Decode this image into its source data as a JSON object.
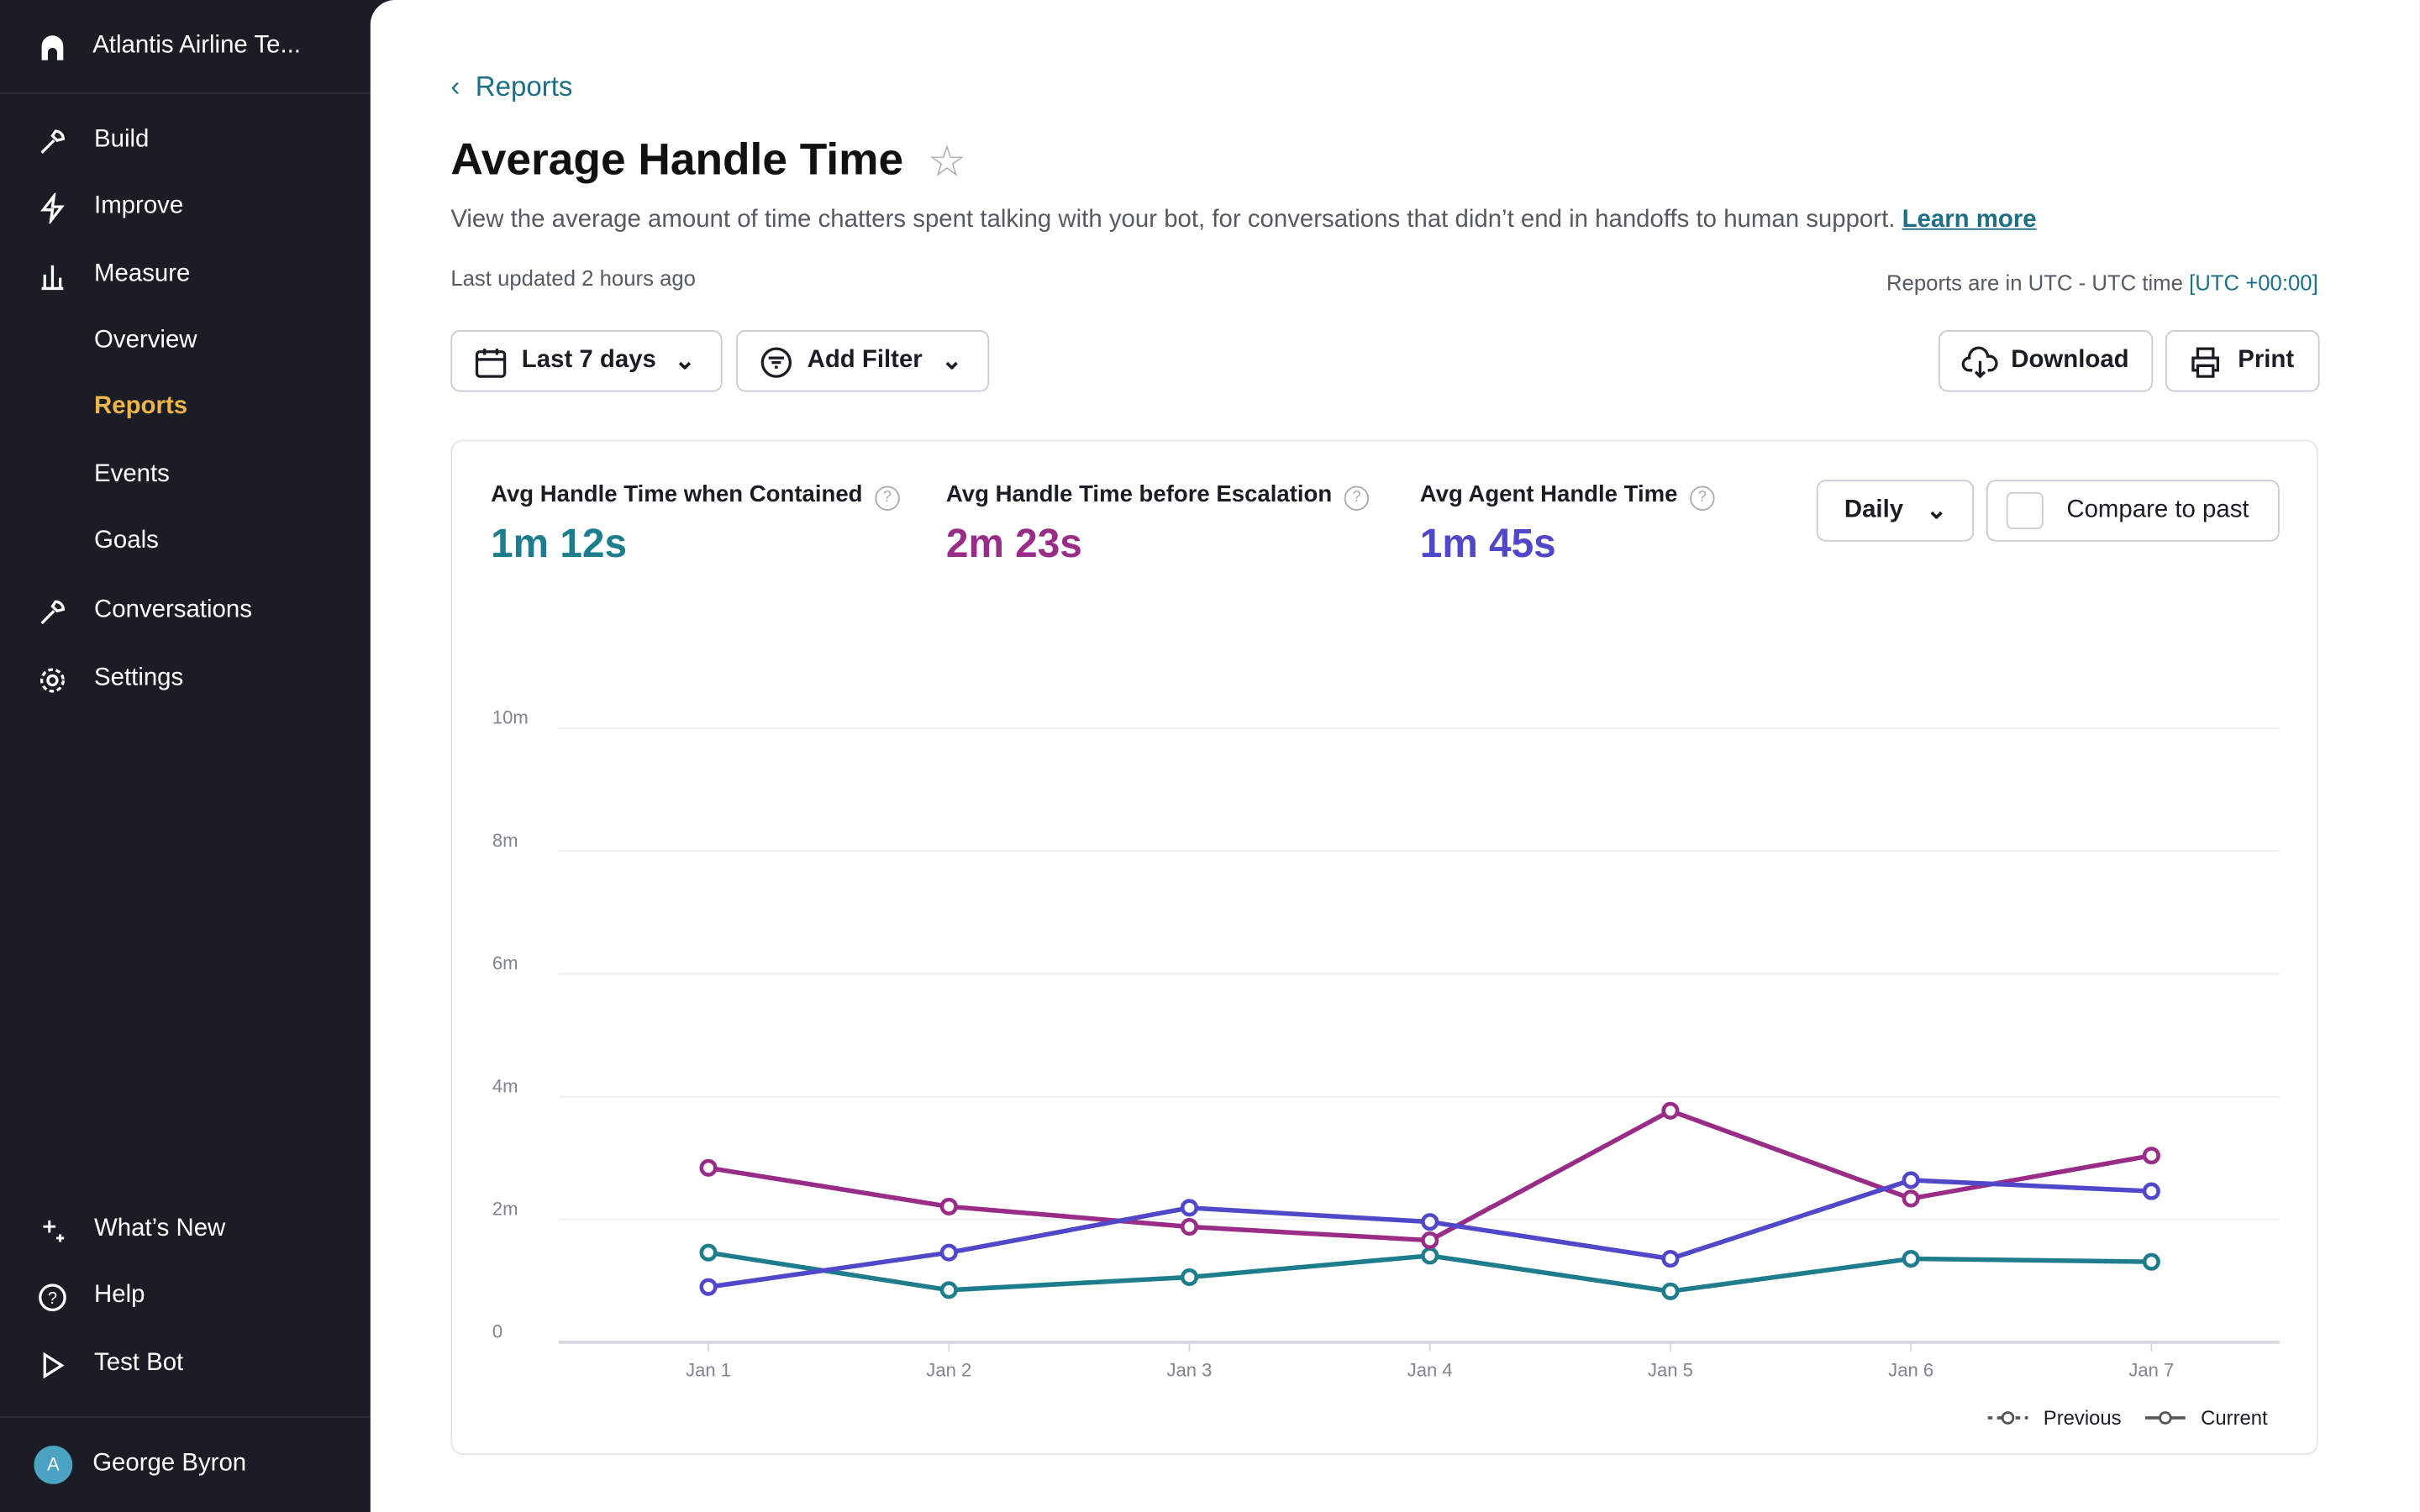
{
  "sidebar": {
    "workspace": "Atlantis Airline Te...",
    "nav": [
      "Build",
      "Improve",
      "Measure"
    ],
    "sub_nav": [
      "Overview",
      "Reports",
      "Events",
      "Goals"
    ],
    "nav2": [
      "Conversations",
      "Settings"
    ],
    "bottom": [
      "What’s New",
      "Help",
      "Test Bot"
    ],
    "user": {
      "initial": "A",
      "name": "George Byron"
    }
  },
  "header": {
    "back": "Reports",
    "title": "Average Handle Time",
    "description": "View the average amount of time chatters spent talking with your bot, for conversations that didn’t end in handoffs to human support.",
    "learn_more": "Learn more",
    "updated": "Last updated 2 hours ago",
    "timezone": "Reports are in UTC - UTC time",
    "timezone_link": "[UTC +00:00]"
  },
  "toolbar": {
    "range": "Last 7 days",
    "filter": "Add Filter",
    "download": "Download",
    "print": "Print"
  },
  "card": {
    "interval": "Daily",
    "compare": "Compare to past"
  },
  "chart_data": {
    "type": "line",
    "categories": [
      "Jan 1",
      "Jan 2",
      "Jan 3",
      "Jan 4",
      "Jan 5",
      "Jan 6",
      "Jan 7"
    ],
    "series": [
      {
        "name": "Avg Handle Time when Contained",
        "summary": "1m 12s",
        "color": "#1e7d8c",
        "values": [
          1.46,
          0.85,
          1.06,
          1.41,
          0.83,
          1.36,
          1.31
        ]
      },
      {
        "name": "Avg Handle Time before Escalation",
        "summary": "2m 23s",
        "color": "#992c86",
        "values": [
          2.84,
          2.21,
          1.88,
          1.66,
          3.77,
          2.34,
          3.04
        ]
      },
      {
        "name": "Avg Agent Handle Time",
        "summary": "1m 45s",
        "color": "#5147c9",
        "values": [
          0.9,
          1.46,
          2.19,
          1.96,
          1.36,
          2.64,
          2.46
        ]
      }
    ],
    "ylim": [
      0,
      10
    ],
    "yticks": [
      0,
      {
        "value": 2,
        "label": "2m"
      },
      {
        "value": 4,
        "label": "4m"
      },
      {
        "value": 6,
        "label": "6m"
      },
      {
        "value": 8,
        "label": "8m"
      },
      {
        "value": 10,
        "label": "10m"
      }
    ],
    "grid": true,
    "style_legend": [
      "Previous",
      "Current"
    ]
  }
}
